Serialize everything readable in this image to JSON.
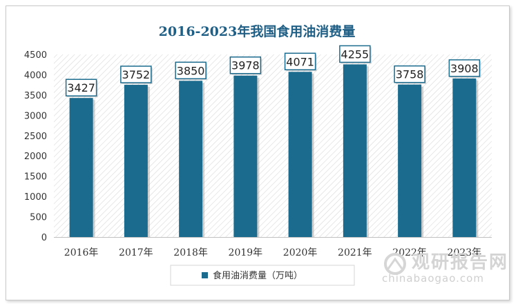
{
  "chart_data": {
    "type": "bar",
    "title": "2016-2023年我国食用油消费量",
    "categories": [
      "2016年",
      "2017年",
      "2018年",
      "2019年",
      "2020年",
      "2021年",
      "2022年",
      "2023年"
    ],
    "series": [
      {
        "name": "食用油消费量（万吨）",
        "values": [
          3427,
          3752,
          3850,
          3978,
          4071,
          4255,
          3758,
          3908
        ]
      }
    ],
    "ylim": [
      0,
      4500
    ],
    "yticks": [
      0,
      500,
      1000,
      1500,
      2000,
      2500,
      3000,
      3500,
      4000,
      4500
    ],
    "legend_position": "bottom",
    "grid": false,
    "colors": {
      "bar": "#1b6b8e",
      "title": "#1f5f86",
      "label_border": "#1b6b8e"
    }
  },
  "watermark": {
    "name_cn": "观研报告网",
    "url": "chinabaogao.com",
    "logo_icon": "watermark-logo-icon"
  }
}
